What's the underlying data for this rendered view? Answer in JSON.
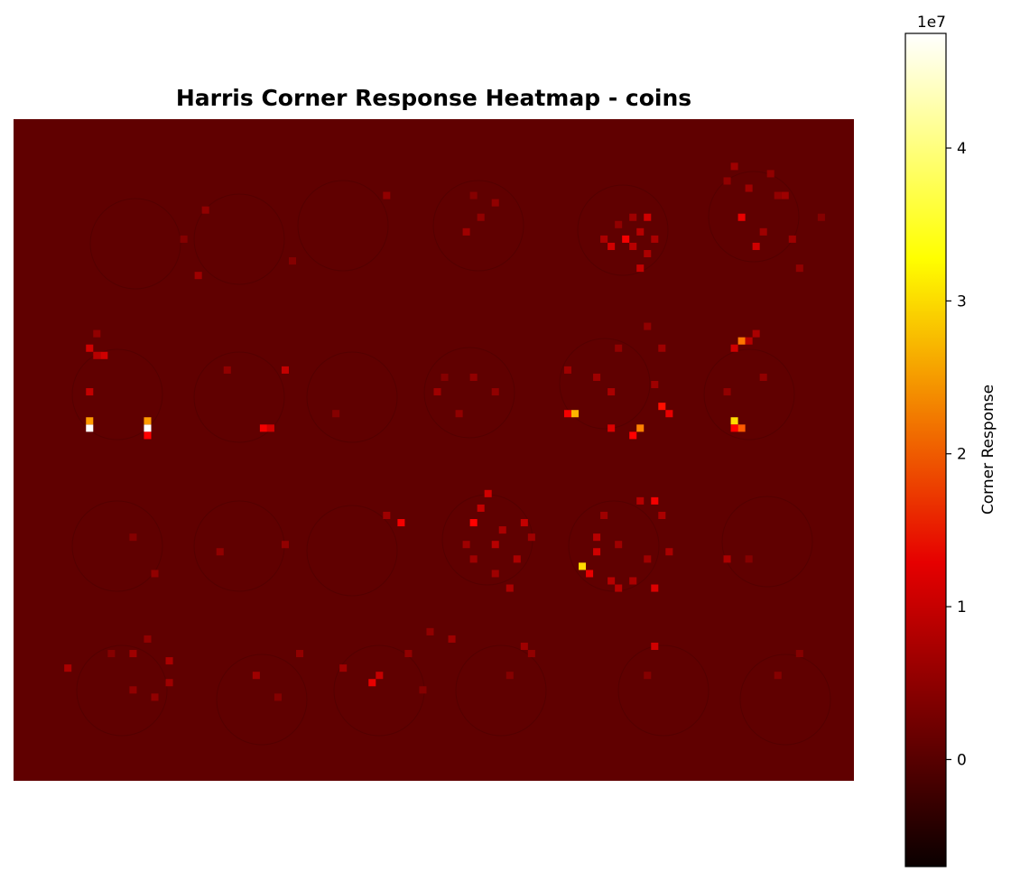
{
  "chart_data": {
    "type": "heatmap",
    "title": "Harris Corner Response Heatmap - coins",
    "xlabel": "",
    "ylabel": "",
    "axes_visible": false,
    "colormap": "hot",
    "background_value": 0,
    "colorbar": {
      "label": "Corner Response",
      "multiplier_label": "1e7",
      "vmin": -0.7,
      "vmax": 4.75,
      "ticks": [
        0,
        1,
        2,
        3,
        4
      ],
      "tick_labels": [
        "0",
        "1",
        "2",
        "3",
        "4"
      ],
      "placement": "right"
    },
    "grid_size": {
      "cols": 116,
      "rows": 91
    },
    "cells": [
      {
        "x": 10,
        "y": 31,
        "v": 0.9
      },
      {
        "x": 11,
        "y": 29,
        "v": 0.4
      },
      {
        "x": 25,
        "y": 21,
        "v": 0.5
      },
      {
        "x": 26,
        "y": 12,
        "v": 0.4
      },
      {
        "x": 38,
        "y": 19,
        "v": 0.3
      },
      {
        "x": 51,
        "y": 10,
        "v": 0.4
      },
      {
        "x": 23,
        "y": 16,
        "v": 0.3
      },
      {
        "x": 62,
        "y": 15,
        "v": 0.5
      },
      {
        "x": 64,
        "y": 13,
        "v": 0.4
      },
      {
        "x": 66,
        "y": 11,
        "v": 0.4
      },
      {
        "x": 63,
        "y": 10,
        "v": 0.3
      },
      {
        "x": 82,
        "y": 17,
        "v": 0.9
      },
      {
        "x": 84,
        "y": 16,
        "v": 1.2
      },
      {
        "x": 85,
        "y": 17,
        "v": 0.7
      },
      {
        "x": 86,
        "y": 15,
        "v": 0.7
      },
      {
        "x": 87,
        "y": 13,
        "v": 0.9
      },
      {
        "x": 81,
        "y": 16,
        "v": 0.6
      },
      {
        "x": 88,
        "y": 16,
        "v": 0.6
      },
      {
        "x": 87,
        "y": 18,
        "v": 0.6
      },
      {
        "x": 85,
        "y": 13,
        "v": 0.5
      },
      {
        "x": 83,
        "y": 14,
        "v": 0.4
      },
      {
        "x": 86,
        "y": 20,
        "v": 0.8
      },
      {
        "x": 99,
        "y": 6,
        "v": 0.5
      },
      {
        "x": 100,
        "y": 13,
        "v": 1.1
      },
      {
        "x": 101,
        "y": 9,
        "v": 0.5
      },
      {
        "x": 102,
        "y": 17,
        "v": 0.9
      },
      {
        "x": 106,
        "y": 10,
        "v": 0.5
      },
      {
        "x": 98,
        "y": 8,
        "v": 0.4
      },
      {
        "x": 103,
        "y": 15,
        "v": 0.5
      },
      {
        "x": 107,
        "y": 16,
        "v": 0.5
      },
      {
        "x": 108,
        "y": 20,
        "v": 0.4
      },
      {
        "x": 104,
        "y": 7,
        "v": 0.4
      },
      {
        "x": 105,
        "y": 10,
        "v": 0.4
      },
      {
        "x": 111,
        "y": 13,
        "v": 0.3
      },
      {
        "x": 10,
        "y": 37,
        "v": 0.8
      },
      {
        "x": 10,
        "y": 42,
        "v": 4.75
      },
      {
        "x": 10,
        "y": 41,
        "v": 2.5
      },
      {
        "x": 11,
        "y": 32,
        "v": 0.7
      },
      {
        "x": 18,
        "y": 42,
        "v": 4.75
      },
      {
        "x": 18,
        "y": 41,
        "v": 2.5
      },
      {
        "x": 18,
        "y": 43,
        "v": 1.3
      },
      {
        "x": 12,
        "y": 32,
        "v": 0.9
      },
      {
        "x": 34,
        "y": 42,
        "v": 1.2
      },
      {
        "x": 35,
        "y": 42,
        "v": 0.9
      },
      {
        "x": 37,
        "y": 34,
        "v": 0.8
      },
      {
        "x": 29,
        "y": 34,
        "v": 0.4
      },
      {
        "x": 58,
        "y": 37,
        "v": 0.5
      },
      {
        "x": 61,
        "y": 40,
        "v": 0.4
      },
      {
        "x": 63,
        "y": 35,
        "v": 0.4
      },
      {
        "x": 66,
        "y": 37,
        "v": 0.4
      },
      {
        "x": 59,
        "y": 35,
        "v": 0.3
      },
      {
        "x": 44,
        "y": 40,
        "v": 0.3
      },
      {
        "x": 77,
        "y": 40,
        "v": 2.7
      },
      {
        "x": 76,
        "y": 40,
        "v": 1.2
      },
      {
        "x": 82,
        "y": 42,
        "v": 1.0
      },
      {
        "x": 85,
        "y": 43,
        "v": 1.3
      },
      {
        "x": 86,
        "y": 42,
        "v": 2.3
      },
      {
        "x": 89,
        "y": 39,
        "v": 1.4
      },
      {
        "x": 90,
        "y": 40,
        "v": 1.1
      },
      {
        "x": 82,
        "y": 37,
        "v": 0.6
      },
      {
        "x": 80,
        "y": 35,
        "v": 0.5
      },
      {
        "x": 76,
        "y": 34,
        "v": 0.5
      },
      {
        "x": 87,
        "y": 28,
        "v": 0.4
      },
      {
        "x": 89,
        "y": 31,
        "v": 0.5
      },
      {
        "x": 83,
        "y": 31,
        "v": 0.4
      },
      {
        "x": 88,
        "y": 36,
        "v": 0.5
      },
      {
        "x": 99,
        "y": 31,
        "v": 0.9
      },
      {
        "x": 100,
        "y": 30,
        "v": 2.2
      },
      {
        "x": 101,
        "y": 30,
        "v": 0.7
      },
      {
        "x": 99,
        "y": 41,
        "v": 3.0
      },
      {
        "x": 100,
        "y": 42,
        "v": 2.0
      },
      {
        "x": 99,
        "y": 42,
        "v": 1.3
      },
      {
        "x": 102,
        "y": 29,
        "v": 0.6
      },
      {
        "x": 98,
        "y": 37,
        "v": 0.4
      },
      {
        "x": 103,
        "y": 35,
        "v": 0.4
      },
      {
        "x": 53,
        "y": 55,
        "v": 1.2
      },
      {
        "x": 28,
        "y": 59,
        "v": 0.4
      },
      {
        "x": 37,
        "y": 58,
        "v": 0.4
      },
      {
        "x": 51,
        "y": 54,
        "v": 0.5
      },
      {
        "x": 19,
        "y": 62,
        "v": 0.4
      },
      {
        "x": 16,
        "y": 57,
        "v": 0.3
      },
      {
        "x": 63,
        "y": 55,
        "v": 1.3
      },
      {
        "x": 64,
        "y": 53,
        "v": 0.8
      },
      {
        "x": 65,
        "y": 51,
        "v": 0.9
      },
      {
        "x": 66,
        "y": 58,
        "v": 0.7
      },
      {
        "x": 67,
        "y": 56,
        "v": 0.6
      },
      {
        "x": 69,
        "y": 60,
        "v": 0.6
      },
      {
        "x": 70,
        "y": 55,
        "v": 0.8
      },
      {
        "x": 62,
        "y": 58,
        "v": 0.5
      },
      {
        "x": 68,
        "y": 64,
        "v": 0.6
      },
      {
        "x": 63,
        "y": 60,
        "v": 0.5
      },
      {
        "x": 71,
        "y": 57,
        "v": 0.5
      },
      {
        "x": 66,
        "y": 62,
        "v": 0.5
      },
      {
        "x": 78,
        "y": 61,
        "v": 3.0
      },
      {
        "x": 79,
        "y": 62,
        "v": 1.1
      },
      {
        "x": 80,
        "y": 59,
        "v": 0.9
      },
      {
        "x": 80,
        "y": 57,
        "v": 0.7
      },
      {
        "x": 82,
        "y": 63,
        "v": 0.7
      },
      {
        "x": 83,
        "y": 64,
        "v": 0.7
      },
      {
        "x": 85,
        "y": 63,
        "v": 0.6
      },
      {
        "x": 87,
        "y": 60,
        "v": 0.5
      },
      {
        "x": 88,
        "y": 52,
        "v": 1.2
      },
      {
        "x": 86,
        "y": 52,
        "v": 0.7
      },
      {
        "x": 89,
        "y": 54,
        "v": 0.6
      },
      {
        "x": 90,
        "y": 59,
        "v": 0.6
      },
      {
        "x": 88,
        "y": 64,
        "v": 1.0
      },
      {
        "x": 83,
        "y": 58,
        "v": 0.5
      },
      {
        "x": 81,
        "y": 54,
        "v": 0.5
      },
      {
        "x": 98,
        "y": 60,
        "v": 0.6
      },
      {
        "x": 101,
        "y": 60,
        "v": 0.3
      },
      {
        "x": 7,
        "y": 75,
        "v": 0.6
      },
      {
        "x": 16,
        "y": 73,
        "v": 0.5
      },
      {
        "x": 18,
        "y": 71,
        "v": 0.4
      },
      {
        "x": 21,
        "y": 74,
        "v": 0.6
      },
      {
        "x": 21,
        "y": 77,
        "v": 0.5
      },
      {
        "x": 19,
        "y": 79,
        "v": 0.4
      },
      {
        "x": 16,
        "y": 78,
        "v": 0.4
      },
      {
        "x": 13,
        "y": 73,
        "v": 0.3
      },
      {
        "x": 33,
        "y": 76,
        "v": 0.5
      },
      {
        "x": 39,
        "y": 73,
        "v": 0.4
      },
      {
        "x": 36,
        "y": 79,
        "v": 0.3
      },
      {
        "x": 45,
        "y": 75,
        "v": 0.5
      },
      {
        "x": 49,
        "y": 77,
        "v": 1.1
      },
      {
        "x": 50,
        "y": 76,
        "v": 0.8
      },
      {
        "x": 54,
        "y": 73,
        "v": 0.4
      },
      {
        "x": 57,
        "y": 70,
        "v": 0.4
      },
      {
        "x": 60,
        "y": 71,
        "v": 0.5
      },
      {
        "x": 56,
        "y": 78,
        "v": 0.3
      },
      {
        "x": 70,
        "y": 72,
        "v": 0.5
      },
      {
        "x": 71,
        "y": 73,
        "v": 0.4
      },
      {
        "x": 68,
        "y": 76,
        "v": 0.3
      },
      {
        "x": 88,
        "y": 72,
        "v": 0.9
      },
      {
        "x": 87,
        "y": 76,
        "v": 0.3
      },
      {
        "x": 105,
        "y": 76,
        "v": 0.3
      },
      {
        "x": 108,
        "y": 73,
        "v": 0.3
      }
    ]
  }
}
